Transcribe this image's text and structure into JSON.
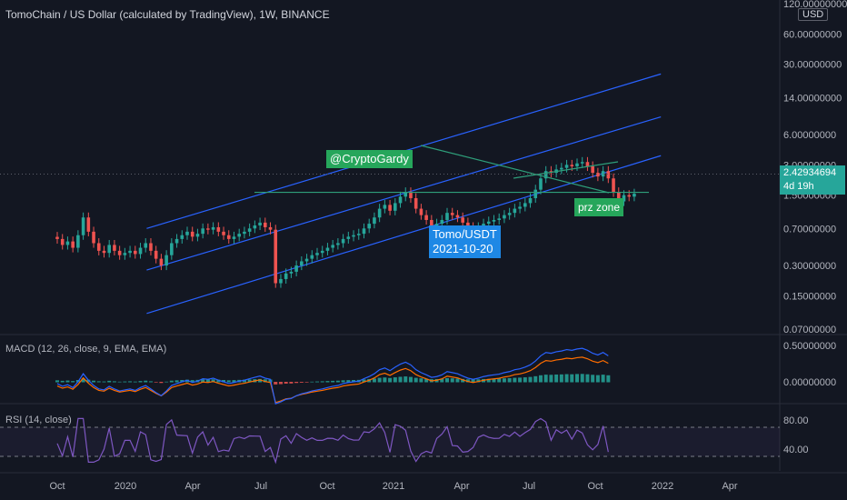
{
  "header": {
    "title": "TomoChain / US Dollar (calculated by TradingView), 1W, BINANCE"
  },
  "currency_label": "USD",
  "last_price": "2.42934694",
  "countdown": "4d 19h",
  "annotations": {
    "author": "@CryptoGardy",
    "pair_label": "Tomo/USDT",
    "date_label": "2021-10-20",
    "zone_label": "prz zone"
  },
  "macd_title": "MACD (12, 26, close, 9, EMA, EMA)",
  "rsi_title": "RSI (14, close)",
  "colors": {
    "background": "#131722",
    "up": "#26a69a",
    "down": "#ef5350",
    "channel": "#2962ff",
    "macd_line": "#2962ff",
    "signal_line": "#ff6d00",
    "rsi_line": "#7e57c2",
    "annotation_green": "#26a65b",
    "annotation_blue": "#1e88e5"
  },
  "chart_data": {
    "type": "candlestick",
    "scale": "log",
    "price_axis_ticks": [
      "120.00000000",
      "60.00000000",
      "30.00000000",
      "14.00000000",
      "6.00000000",
      "3.00000000",
      "1.50000000",
      "0.70000000",
      "0.30000000",
      "0.15000000",
      "0.07000000"
    ],
    "x_axis_ticks": [
      "Oct",
      "2020",
      "Apr",
      "Jul",
      "Oct",
      "2021",
      "Apr",
      "Jul",
      "Oct",
      "2022",
      "Apr"
    ],
    "macd_axis_ticks": [
      "0.50000000",
      "0.00000000"
    ],
    "rsi_axis_ticks": [
      "80.00",
      "40.00"
    ],
    "weekly_closes_approx": [
      0.55,
      0.48,
      0.52,
      0.45,
      0.6,
      0.9,
      0.65,
      0.5,
      0.42,
      0.4,
      0.48,
      0.42,
      0.38,
      0.4,
      0.42,
      0.39,
      0.45,
      0.5,
      0.42,
      0.35,
      0.3,
      0.38,
      0.5,
      0.55,
      0.6,
      0.65,
      0.58,
      0.62,
      0.7,
      0.68,
      0.72,
      0.65,
      0.6,
      0.55,
      0.58,
      0.62,
      0.65,
      0.7,
      0.75,
      0.8,
      0.72,
      0.68,
      0.2,
      0.22,
      0.25,
      0.26,
      0.3,
      0.33,
      0.35,
      0.38,
      0.4,
      0.42,
      0.45,
      0.48,
      0.5,
      0.55,
      0.58,
      0.6,
      0.62,
      0.7,
      0.78,
      0.9,
      1.1,
      1.2,
      1.05,
      1.25,
      1.45,
      1.6,
      1.4,
      1.1,
      0.95,
      0.85,
      0.75,
      0.78,
      0.85,
      1.0,
      0.95,
      0.9,
      0.8,
      0.72,
      0.68,
      0.72,
      0.78,
      0.82,
      0.85,
      0.88,
      0.95,
      1.0,
      1.1,
      1.15,
      1.25,
      1.4,
      1.7,
      2.2,
      2.6,
      2.5,
      2.7,
      2.8,
      3.0,
      2.9,
      3.1,
      3.2,
      2.9,
      2.5,
      2.3,
      2.6,
      2.2,
      1.6,
      1.3,
      1.5,
      1.45,
      1.55,
      1.6,
      1.5,
      1.7,
      2.3,
      2.6,
      2.8,
      2.9,
      3.1,
      3.3,
      3.5,
      2.6,
      2.25,
      2.2,
      2.3,
      2.35,
      2.43
    ],
    "channel": {
      "upper": {
        "from": [
          "2020-02",
          0.7
        ],
        "to": [
          "2022-01",
          24
        ]
      },
      "middle": {
        "from": [
          "2020-02",
          0.27
        ],
        "to": [
          "2022-01",
          9
        ]
      },
      "lower": {
        "from": [
          "2020-02",
          0.1
        ],
        "to": [
          "2022-01",
          3.7
        ]
      }
    },
    "support_line": 1.6,
    "rsi_levels": [
      70,
      30
    ]
  }
}
